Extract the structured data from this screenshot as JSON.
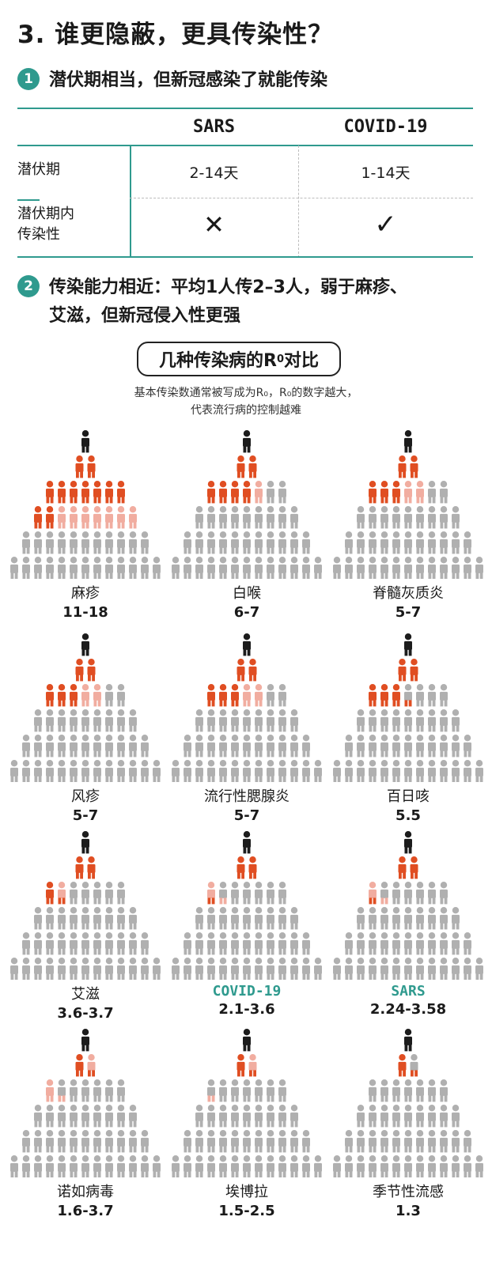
{
  "title": "3. 谁更隐蔽，更具传染性？",
  "section1": {
    "number": "1",
    "text": "潜伏期相当，但新冠感染了就能传染"
  },
  "table": {
    "columns": [
      "SARS",
      "COVID-19"
    ],
    "rows": [
      {
        "label": "潜伏期",
        "values": [
          "2-14天",
          "1-14天"
        ]
      },
      {
        "label_lines": [
          "潜伏期内",
          "传染性"
        ],
        "values": [
          "✕",
          "✓"
        ]
      }
    ]
  },
  "section2": {
    "number": "2",
    "lines": [
      "传染能力相近：平均1人传2–3人，弱于麻疹、",
      "艾滋，但新冠侵入性更强"
    ]
  },
  "r0_box": {
    "title_pre": "几种传染病的R",
    "title_sub": "0",
    "title_post": "对比"
  },
  "subtitle": {
    "line1": "基本传染数通常被写成为R₀，R₀的数字越大，",
    "line2": "代表流行病的控制越难"
  },
  "colors": {
    "teal": "#2f9a8e",
    "red": "#e04e22",
    "pink": "#f1ada0",
    "gray": "#b0b0b0",
    "black": "#1c1c1c"
  },
  "diseases": [
    {
      "name": "麻疹",
      "value": "11-18",
      "red": 11,
      "pink": 7,
      "highlight": false
    },
    {
      "name": "白喉",
      "value": "6-7",
      "red": 6,
      "pink": 1,
      "highlight": false
    },
    {
      "name": "脊髓灰质炎",
      "value": "5-7",
      "red": 5,
      "pink": 2,
      "highlight": false
    },
    {
      "name": "风疹",
      "value": "5-7",
      "red": 5,
      "pink": 2,
      "highlight": false
    },
    {
      "name": "流行性腮腺炎",
      "value": "5-7",
      "red": 5,
      "pink": 2,
      "highlight": false
    },
    {
      "name": "百日咳",
      "value": "5.5",
      "red": 5.5,
      "pink": 0,
      "highlight": false
    },
    {
      "name": "艾滋",
      "value": "3.6-3.7",
      "red": 3.6,
      "pink": 0.1,
      "highlight": false
    },
    {
      "name": "COVID-19",
      "value": "2.1-3.6",
      "red": 2.1,
      "pink": 1.5,
      "highlight": true
    },
    {
      "name": "SARS",
      "value": "2.24-3.58",
      "red": 2.24,
      "pink": 1.34,
      "highlight": true
    },
    {
      "name": "诺如病毒",
      "value": "1.6-3.7",
      "red": 1.6,
      "pink": 2.1,
      "highlight": false
    },
    {
      "name": "埃博拉",
      "value": "1.5-2.5",
      "red": 1.5,
      "pink": 1.0,
      "highlight": false
    },
    {
      "name": "季节性流感",
      "value": "1.3",
      "red": 1.3,
      "pink": 0,
      "highlight": false
    }
  ]
}
